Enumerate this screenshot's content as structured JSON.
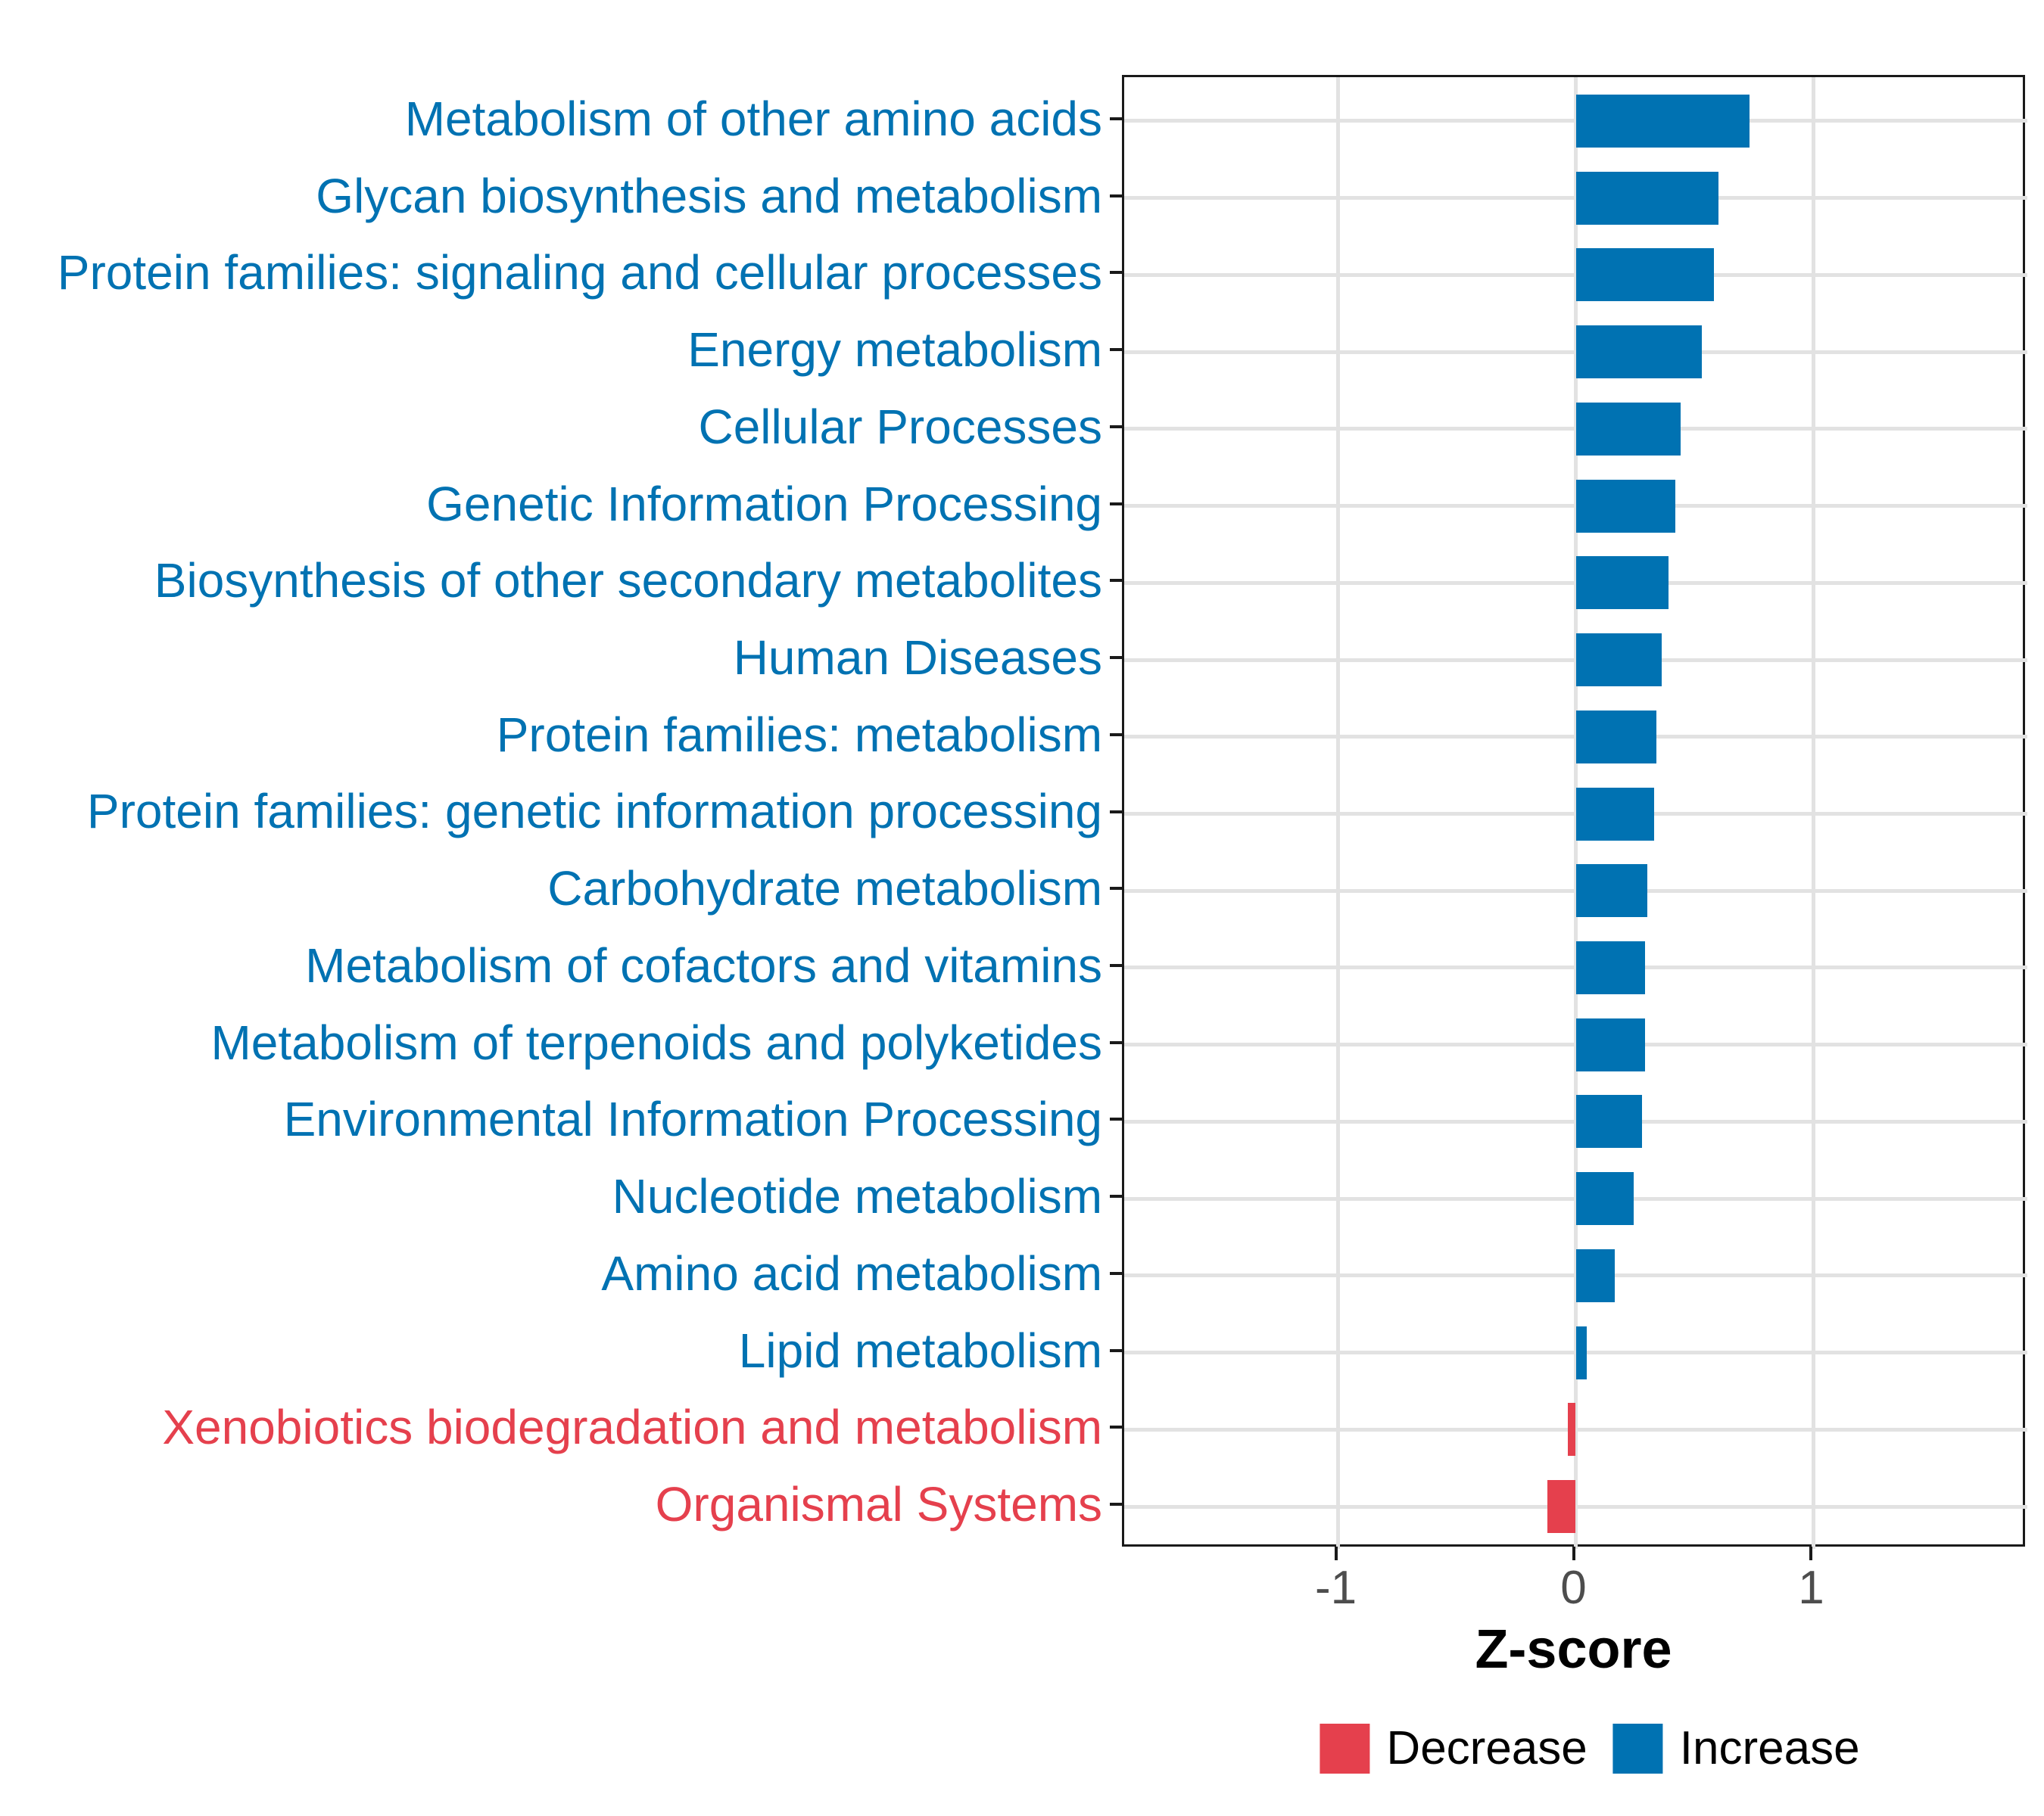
{
  "chart_data": {
    "type": "bar",
    "orientation": "horizontal",
    "title": "",
    "xlabel": "Z-score",
    "ylabel": "",
    "xlim": [
      -1.9,
      1.9
    ],
    "x_ticks": [
      {
        "value": -1,
        "label": "-1"
      },
      {
        "value": 0,
        "label": "0"
      },
      {
        "value": 1,
        "label": "1"
      }
    ],
    "grid": "major-gridlines-on-white, black panel border",
    "legend_position": "bottom-right",
    "categories": [
      "Metabolism of other amino acids",
      "Glycan biosynthesis and metabolism",
      "Protein families: signaling and cellular processes",
      "Energy metabolism",
      "Cellular Processes",
      "Genetic Information Processing",
      "Biosynthesis of other secondary metabolites",
      "Human Diseases",
      "Protein families: metabolism",
      "Protein families: genetic information processing",
      "Carbohydrate metabolism",
      "Metabolism of cofactors and vitamins",
      "Metabolism of terpenoids and polyketides",
      "Environmental Information Processing",
      "Nucleotide metabolism",
      "Amino acid metabolism",
      "Lipid metabolism",
      "Xenobiotics biodegradation and metabolism",
      "Organismal Systems"
    ],
    "values": [
      0.73,
      0.6,
      0.58,
      0.53,
      0.44,
      0.42,
      0.39,
      0.36,
      0.34,
      0.33,
      0.3,
      0.29,
      0.29,
      0.28,
      0.245,
      0.165,
      0.047,
      -0.034,
      -0.119
    ],
    "groups": [
      "Increase",
      "Increase",
      "Increase",
      "Increase",
      "Increase",
      "Increase",
      "Increase",
      "Increase",
      "Increase",
      "Increase",
      "Increase",
      "Increase",
      "Increase",
      "Increase",
      "Increase",
      "Increase",
      "Increase",
      "Decrease",
      "Decrease"
    ],
    "legend": [
      {
        "label": "Decrease",
        "group": "Decrease"
      },
      {
        "label": "Increase",
        "group": "Increase"
      }
    ],
    "colors": {
      "Increase": "#0072B2",
      "Decrease": "#E5404D",
      "gridline": "#E2E2E2",
      "axis_text": "#4D4D4D",
      "panel_border": "#1A1A1A"
    }
  }
}
